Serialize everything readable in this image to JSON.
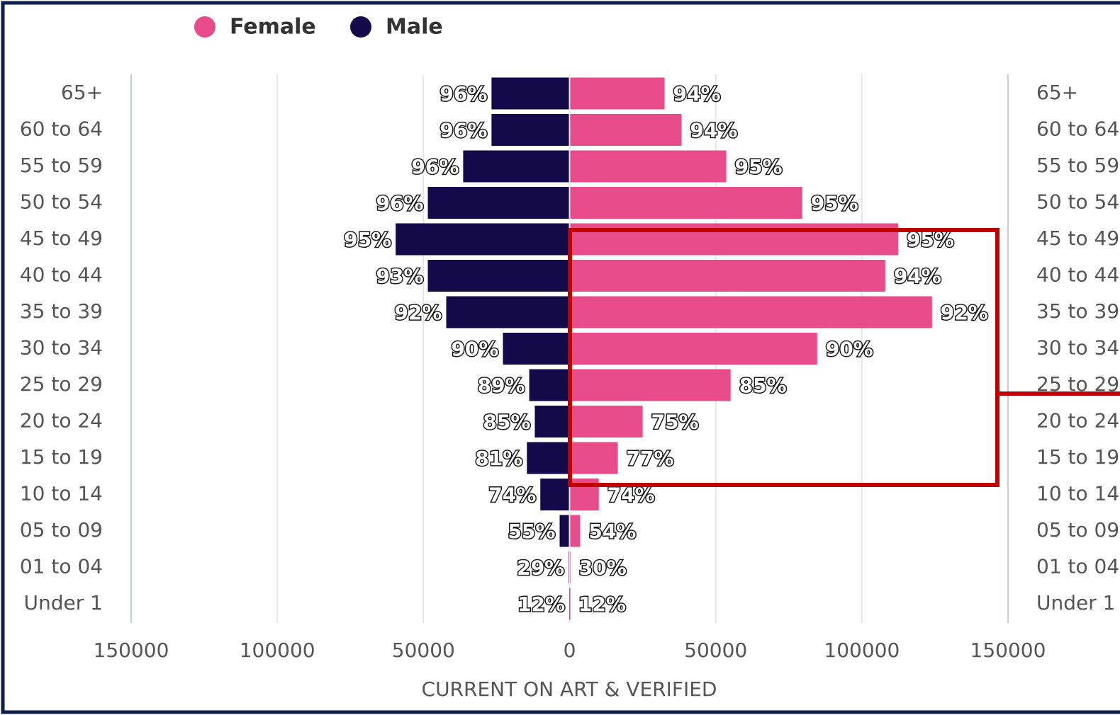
{
  "chart_data": {
    "type": "pyramid",
    "x_axis_label": "CURRENT ON ART & VERIFIED",
    "categories": [
      "65+",
      "60 to 64",
      "55 to 59",
      "50 to 54",
      "45 to 49",
      "40 to 44",
      "35 to 39",
      "30 to 34",
      "25 to 29",
      "20 to 24",
      "15 to 19",
      "10 to 14",
      "05 to 09",
      "01 to 04",
      "Under 1"
    ],
    "series": [
      {
        "name": "Female",
        "color": "#e84b8a",
        "values": [
          32500,
          38300,
          53600,
          79600,
          112400,
          108000,
          124000,
          84700,
          55100,
          25000,
          16500,
          10000,
          3600,
          300,
          100
        ],
        "data_labels": [
          "94%",
          "94%",
          "95%",
          "95%",
          "95%",
          "94%",
          "92%",
          "90%",
          "85%",
          "75%",
          "77%",
          "74%",
          "54%",
          "30%",
          "12%"
        ]
      },
      {
        "name": "Male",
        "color": "#140a4a",
        "values": [
          -26700,
          -26700,
          -36400,
          -48500,
          -59500,
          -48500,
          -42200,
          -22800,
          -13800,
          -11900,
          -14600,
          -10000,
          -3400,
          -300,
          -100
        ],
        "data_labels": [
          "96%",
          "96%",
          "96%",
          "96%",
          "95%",
          "93%",
          "92%",
          "90%",
          "89%",
          "85%",
          "81%",
          "74%",
          "55%",
          "29%",
          "12%"
        ]
      }
    ],
    "xlim": [
      -150000,
      150000
    ],
    "xticks": [
      {
        "value": -150000,
        "label": "150000"
      },
      {
        "value": -100000,
        "label": "100000"
      },
      {
        "value": -50000,
        "label": "50000"
      },
      0,
      50000,
      100000,
      150000
    ],
    "grid": true,
    "legend": "top"
  }
}
